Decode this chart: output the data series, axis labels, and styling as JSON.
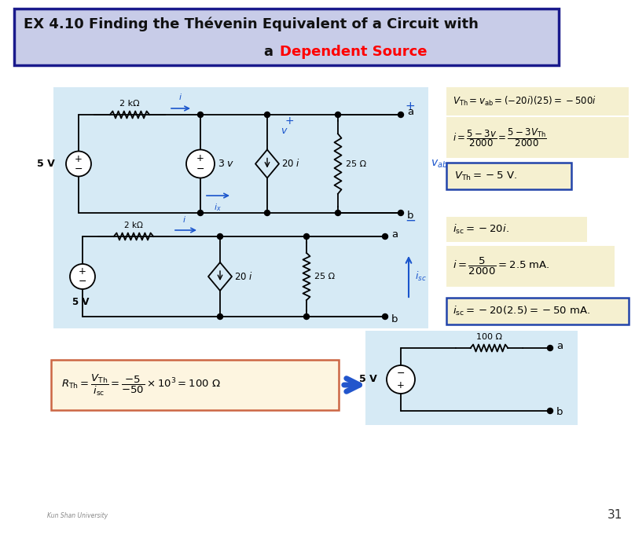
{
  "title_line1": "EX 4.10 Finding the Thévenin Equivalent of a Circuit with",
  "title_line2_black": "a ",
  "title_line2_red": "Dependent Source",
  "title_bg": "#c8cce8",
  "title_border": "#1a1a8c",
  "page_bg": "#ffffff",
  "circuit_bg": "#d6eaf5",
  "eq_bg": "#f5f0d0",
  "eq_border": "#2244aa",
  "page_number": "31",
  "wire_color": "#000000",
  "blue_label_color": "#1a55cc"
}
